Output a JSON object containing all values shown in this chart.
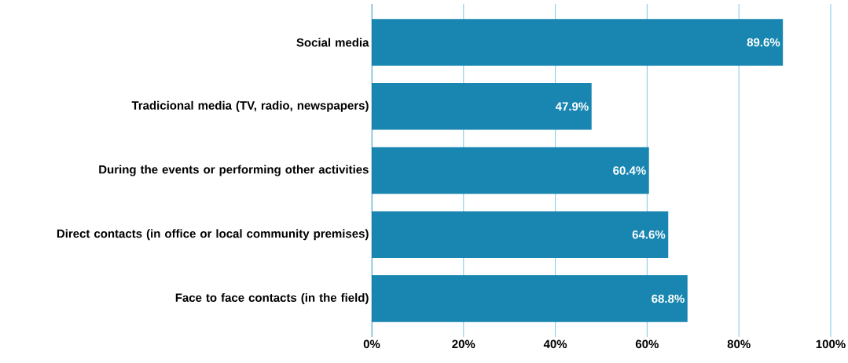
{
  "chart_data": {
    "type": "bar",
    "orientation": "horizontal",
    "categories": [
      "Social media",
      "Tradicional media (TV, radio, newspapers)",
      "During the events or performing other activities",
      "Direct contacts (in office or local community premises)",
      "Face to face contacts (in the field)"
    ],
    "values": [
      89.6,
      47.9,
      60.4,
      64.6,
      68.8
    ],
    "value_labels": [
      "89.6%",
      "47.9%",
      "60.4%",
      "64.6%",
      "68.8%"
    ],
    "color": "#1886b0",
    "xlim": [
      0,
      100
    ],
    "xticks": [
      {
        "value": 0,
        "label": "0%"
      },
      {
        "value": 20,
        "label": "20%"
      },
      {
        "value": 40,
        "label": "40%"
      },
      {
        "value": 60,
        "label": "60%"
      },
      {
        "value": 80,
        "label": "80%"
      },
      {
        "value": 100,
        "label": "100%"
      }
    ],
    "grid": "x"
  }
}
